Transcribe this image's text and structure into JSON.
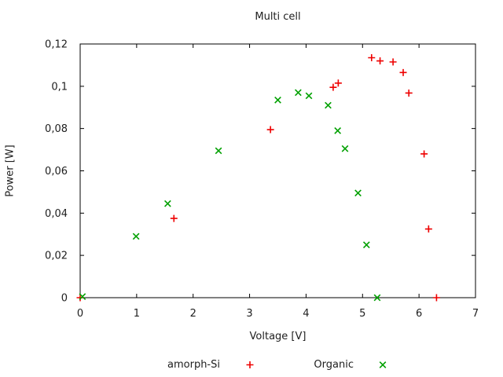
{
  "title": "Multi cell",
  "colors": {
    "background": "#ffffff",
    "frame": "#000000",
    "text": "#202020",
    "amorph_si": "#ee0000",
    "organic": "#00a000"
  },
  "chart_data": {
    "type": "scatter",
    "title": "Multi cell",
    "xlabel": "Voltage [V]",
    "ylabel": "Power [W]",
    "xlim": [
      0,
      7
    ],
    "ylim": [
      0,
      0.12
    ],
    "grid": false,
    "legend_position": "below-center",
    "x_ticks": {
      "values": [
        0,
        1,
        2,
        3,
        4,
        5,
        6,
        7
      ],
      "labels": [
        "0",
        "1",
        "2",
        "3",
        "4",
        "5",
        "6",
        "7"
      ]
    },
    "y_ticks": {
      "values": [
        0,
        0.02,
        0.04,
        0.06,
        0.08,
        0.1,
        0.12
      ],
      "labels": [
        "0",
        "0,02",
        "0,04",
        "0,06",
        "0,08",
        "0,1",
        "0,12"
      ]
    },
    "series": [
      {
        "name": "amorph-Si",
        "marker": "plus",
        "color": "#ee0000",
        "points": [
          [
            0.0,
            0.0
          ],
          [
            1.66,
            0.0375
          ],
          [
            3.37,
            0.0795
          ],
          [
            4.48,
            0.0995
          ],
          [
            4.57,
            0.1015
          ],
          [
            5.16,
            0.1135
          ],
          [
            5.31,
            0.112
          ],
          [
            5.54,
            0.1115
          ],
          [
            5.72,
            0.1065
          ],
          [
            5.82,
            0.0968
          ],
          [
            6.09,
            0.068
          ],
          [
            6.17,
            0.0325
          ],
          [
            6.31,
            0.0
          ]
        ]
      },
      {
        "name": "Organic",
        "marker": "cross",
        "color": "#00a000",
        "points": [
          [
            0.04,
            0.0005
          ],
          [
            0.99,
            0.029
          ],
          [
            1.55,
            0.0445
          ],
          [
            2.45,
            0.0695
          ],
          [
            3.5,
            0.0935
          ],
          [
            3.86,
            0.097
          ],
          [
            4.05,
            0.0955
          ],
          [
            4.39,
            0.091
          ],
          [
            4.56,
            0.079
          ],
          [
            4.69,
            0.0705
          ],
          [
            4.92,
            0.0495
          ],
          [
            5.07,
            0.025
          ],
          [
            5.26,
            0.0
          ]
        ]
      }
    ]
  }
}
